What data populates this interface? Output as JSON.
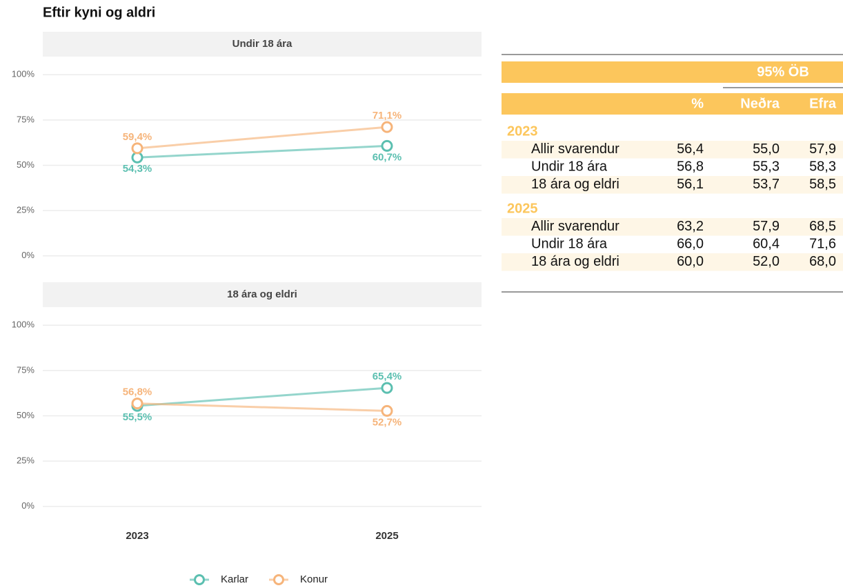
{
  "title": "Eftir kyni og aldri",
  "chart_data": [
    {
      "type": "line",
      "title": "Undir 18 ára",
      "series": [
        {
          "name": "Karlar",
          "color": "#5bbfb0",
          "values": [
            54.3,
            60.7
          ],
          "value_labels": [
            "54,3%",
            "60,7%"
          ]
        },
        {
          "name": "Konur",
          "color": "#f6b47a",
          "values": [
            59.4,
            71.1
          ],
          "value_labels": [
            "59,4%",
            "71,1%"
          ]
        }
      ],
      "ylim": [
        -10,
        110
      ],
      "yticks": [
        {
          "value": 0,
          "label": "0%"
        },
        {
          "value": 25,
          "label": "25%"
        },
        {
          "value": 50,
          "label": "50%"
        },
        {
          "value": 75,
          "label": "75%"
        },
        {
          "value": 100,
          "label": "100%"
        }
      ],
      "grid": true
    },
    {
      "type": "line",
      "title": "18 ára og eldri",
      "categories": [
        "2023",
        "2025"
      ],
      "series": [
        {
          "values": [
            55.5,
            65.4
          ],
          "value_labels": [
            "55,5%",
            "65,4%"
          ]
        },
        {
          "values": [
            56.8,
            52.7
          ],
          "value_labels": [
            "56,8%",
            "52,7%"
          ]
        }
      ],
      "ylim": [
        -10,
        110
      ],
      "yticks": [
        {
          "value": 0,
          "label": "0%"
        },
        {
          "value": 25,
          "label": "25%"
        },
        {
          "value": 50,
          "label": "50%"
        },
        {
          "value": 75,
          "label": "75%"
        },
        {
          "value": 100,
          "label": "100%"
        }
      ],
      "grid": true
    }
  ],
  "table": {
    "group_header": "95% ÖB",
    "columns": [
      "%",
      "Neðra",
      "Efra"
    ],
    "groups": [
      {
        "label": "2023",
        "rows": [
          {
            "label": "Allir svarendur",
            "cells": [
              "56,4",
              "55,0",
              "57,9"
            ]
          },
          {
            "label": "Undir 18 ára",
            "cells": [
              "56,8",
              "55,3",
              "58,3"
            ]
          },
          {
            "label": "18 ára og eldri",
            "cells": [
              "56,1",
              "53,7",
              "58,5"
            ]
          }
        ]
      },
      {
        "label": "2025",
        "rows": [
          {
            "label": "Allir svarendur",
            "cells": [
              "63,2",
              "57,9",
              "68,5"
            ]
          },
          {
            "label": "Undir 18 ára",
            "cells": [
              "66,0",
              "60,4",
              "71,6"
            ]
          },
          {
            "label": "18 ára og eldri",
            "cells": [
              "60,0",
              "52,0",
              "68,0"
            ]
          }
        ]
      }
    ]
  }
}
